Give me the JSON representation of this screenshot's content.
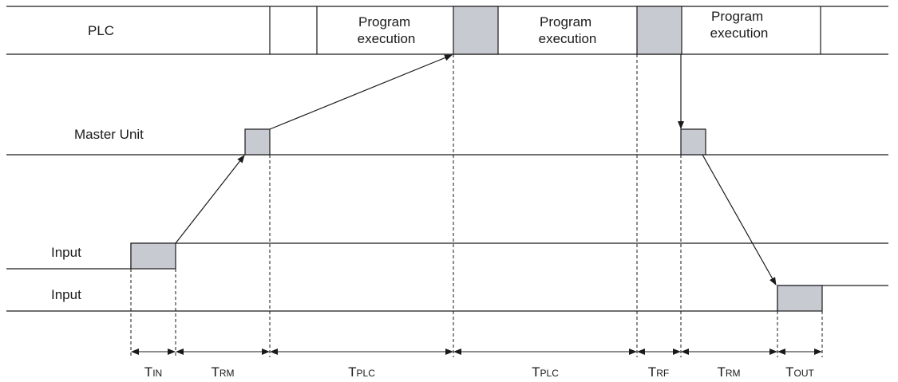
{
  "rows": {
    "plc": "PLC",
    "master": "Master Unit",
    "input": "Input",
    "output": "Input"
  },
  "plc_cells": {
    "exec1": [
      "Program",
      "execution"
    ],
    "exec2": [
      "Program",
      "execution"
    ],
    "exec3": [
      "Program",
      "execution"
    ]
  },
  "intervals": [
    {
      "main": "T",
      "sub": "IN"
    },
    {
      "main": "T",
      "sub": "RM"
    },
    {
      "main": "T",
      "sub": "PLC"
    },
    {
      "main": "T",
      "sub": "PLC"
    },
    {
      "main": "T",
      "sub": "RF"
    },
    {
      "main": "T",
      "sub": "RM"
    },
    {
      "main": "T",
      "sub": "OUT"
    }
  ],
  "colors": {
    "block_fill": "#c8cad2",
    "line": "#1a1a1a"
  }
}
